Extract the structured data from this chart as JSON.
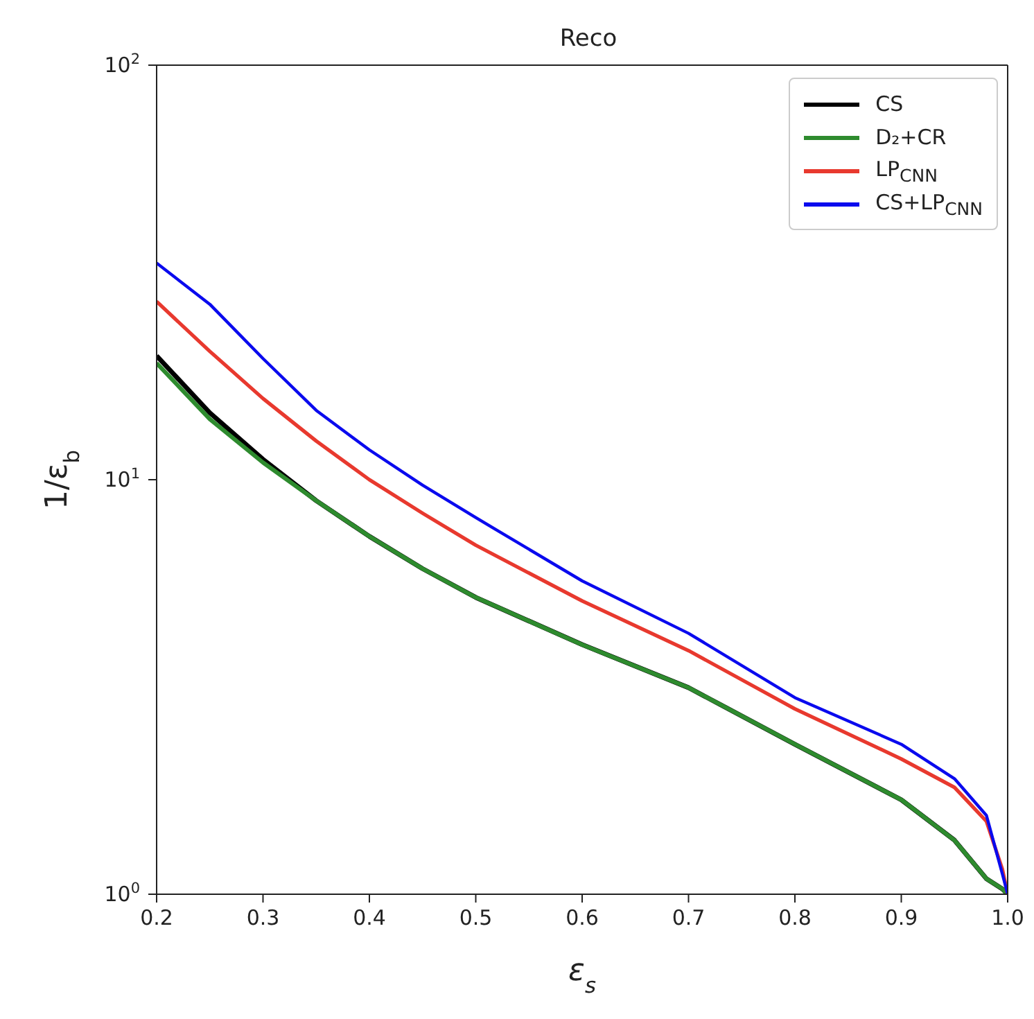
{
  "chart_data": {
    "type": "line",
    "title": "Reco",
    "xlabel": "ε$_{s}$",
    "ylabel": "1/ε$_{b}$",
    "log": "y",
    "xlim": [
      0.2,
      1.0
    ],
    "xticks": [
      0.2,
      0.3,
      0.4,
      0.5,
      0.6,
      0.7,
      0.8,
      0.9,
      {
        "value": 1,
        "label": "1.0"
      }
    ],
    "ylim": [
      1,
      100
    ],
    "yticks": [
      {
        "value": 1,
        "label": "10$^{0}$"
      },
      {
        "value": 10,
        "label": "10$^{1}$"
      },
      {
        "value": 100,
        "label": "10$^{2}$"
      }
    ],
    "legend": "top right",
    "marker": "none",
    "line_style": "solid",
    "x": [
      0.2,
      0.25,
      0.3,
      0.35,
      0.4,
      0.45,
      0.5,
      0.6,
      0.7,
      0.8,
      0.9,
      0.95,
      0.98,
      0.995,
      1.0
    ],
    "series": [
      {
        "name": "CS",
        "color": "#000000",
        "values": [
          19.9,
          14.5,
          11.2,
          8.9,
          7.3,
          6.1,
          5.2,
          4.0,
          3.15,
          2.3,
          1.69,
          1.35,
          1.09,
          1.03,
          1.0
        ]
      },
      {
        "name": "D₂+CR",
        "color": "#2e8b2e",
        "values": [
          19.1,
          14.0,
          11.0,
          8.9,
          7.3,
          6.1,
          5.2,
          4.0,
          3.15,
          2.3,
          1.69,
          1.35,
          1.09,
          1.03,
          1.0
        ]
      },
      {
        "name": "LP$_{CNN}$",
        "color": "#e8392e",
        "values": [
          26.9,
          20.4,
          15.7,
          12.4,
          10.0,
          8.3,
          6.95,
          5.1,
          3.87,
          2.8,
          2.12,
          1.81,
          1.5,
          1.15,
          1.0
        ]
      },
      {
        "name": "CS+LP$_{CNN}$",
        "color": "#0a0aee",
        "values": [
          33.3,
          26.5,
          19.6,
          14.7,
          11.8,
          9.7,
          8.1,
          5.7,
          4.26,
          2.98,
          2.3,
          1.9,
          1.55,
          1.12,
          1.0
        ]
      }
    ]
  }
}
